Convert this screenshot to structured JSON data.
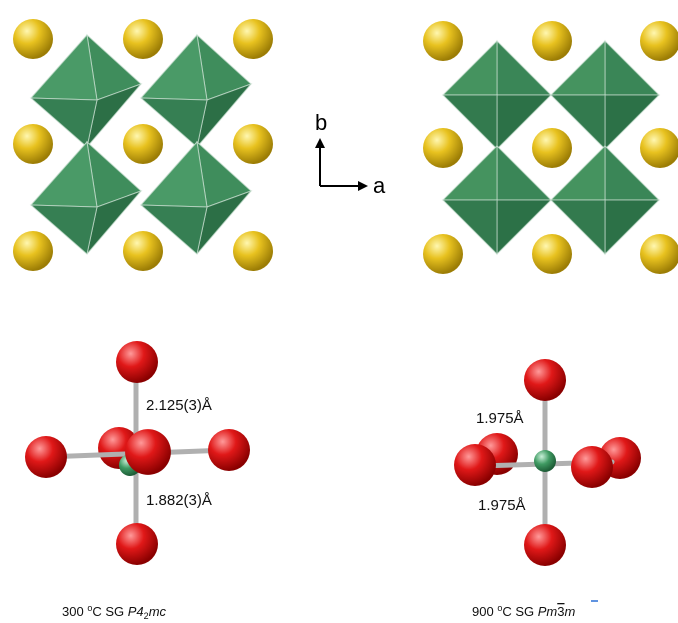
{
  "axes": {
    "b": "b",
    "a": "a"
  },
  "left_bonds": [
    "2.125(3)Å",
    "1.882(3)Å"
  ],
  "right_bonds": [
    "1.975Å",
    "1.975Å"
  ],
  "captions": [
    {
      "temperature": "300",
      "degree": "o",
      "unit": "C SG",
      "space_group": [
        "P4",
        "2",
        "mc"
      ]
    },
    {
      "temperature": "900",
      "degree": "o",
      "unit": "C SG",
      "space_group": [
        "Pm",
        "3",
        "m"
      ]
    }
  ]
}
